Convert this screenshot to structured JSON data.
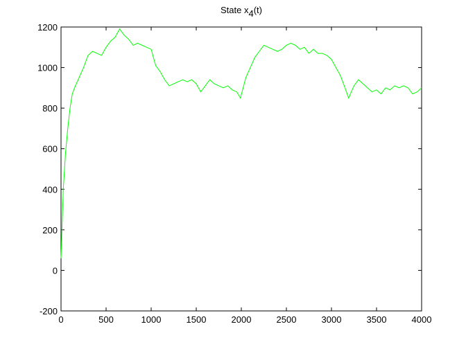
{
  "chart_data": {
    "type": "line",
    "title": [
      "State x",
      "4",
      "(t)"
    ],
    "x": [
      0,
      25,
      50,
      75,
      100,
      125,
      150,
      200,
      250,
      300,
      350,
      400,
      450,
      500,
      550,
      600,
      650,
      700,
      750,
      800,
      850,
      900,
      950,
      1000,
      1050,
      1100,
      1150,
      1200,
      1250,
      1300,
      1350,
      1400,
      1450,
      1500,
      1550,
      1600,
      1650,
      1700,
      1750,
      1800,
      1850,
      1900,
      1950,
      1990,
      2050,
      2100,
      2150,
      2200,
      2250,
      2300,
      2350,
      2400,
      2450,
      2500,
      2550,
      2600,
      2650,
      2700,
      2750,
      2800,
      2850,
      2900,
      2950,
      3000,
      3050,
      3100,
      3150,
      3190,
      3250,
      3300,
      3350,
      3400,
      3450,
      3500,
      3550,
      3600,
      3650,
      3700,
      3750,
      3800,
      3850,
      3900,
      3950,
      4000
    ],
    "series": [
      {
        "color": "#00ff00",
        "values": [
          60,
          400,
          580,
          700,
          800,
          870,
          900,
          950,
          1000,
          1060,
          1080,
          1070,
          1060,
          1100,
          1130,
          1150,
          1190,
          1160,
          1140,
          1110,
          1120,
          1110,
          1100,
          1090,
          1010,
          980,
          940,
          910,
          920,
          930,
          940,
          930,
          940,
          920,
          880,
          910,
          940,
          920,
          910,
          900,
          910,
          890,
          880,
          850,
          950,
          1000,
          1050,
          1080,
          1110,
          1100,
          1090,
          1080,
          1090,
          1110,
          1120,
          1110,
          1090,
          1100,
          1070,
          1090,
          1070,
          1070,
          1060,
          1040,
          1000,
          960,
          900,
          850,
          910,
          940,
          920,
          900,
          880,
          890,
          870,
          900,
          890,
          910,
          900,
          910,
          900,
          870,
          880,
          900
        ]
      }
    ],
    "xlim": [
      0,
      4000
    ],
    "xticks": [
      0,
      500,
      1000,
      1500,
      2000,
      2500,
      3000,
      3500,
      4000
    ],
    "ylim": [
      -200,
      1200
    ],
    "yticks": [
      -200,
      0,
      200,
      400,
      600,
      800,
      1000,
      1200
    ],
    "grid": false
  }
}
